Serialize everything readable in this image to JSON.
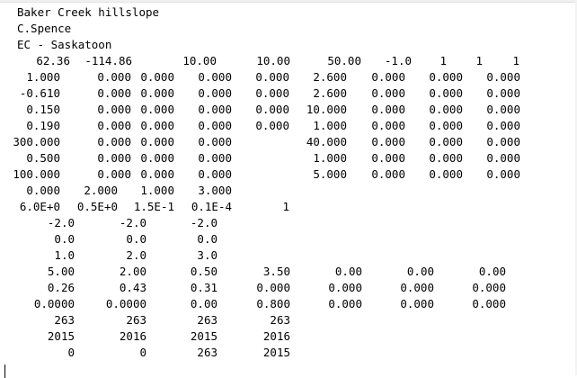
{
  "header_lines": [
    "Baker Creek hillslope",
    "C.Spence",
    "EC - Saskatoon"
  ],
  "rows": [
    [
      "62.36",
      "-114.86",
      "10.00",
      "10.00",
      "50.00",
      "-1.0",
      "1",
      "1",
      "1"
    ],
    [
      "1.000",
      "0.000",
      "0.000",
      "0.000",
      "0.000",
      "2.600",
      "0.000",
      "0.000",
      "0.000"
    ],
    [
      "-0.610",
      "0.000",
      "0.000",
      "0.000",
      "0.000",
      "2.600",
      "0.000",
      "0.000",
      "0.000"
    ],
    [
      "0.150",
      "0.000",
      "0.000",
      "0.000",
      "0.000",
      "10.000",
      "0.000",
      "0.000",
      "0.000"
    ],
    [
      "0.190",
      "0.000",
      "0.000",
      "0.000",
      "0.000",
      "1.000",
      "0.000",
      "0.000",
      "0.000"
    ],
    [
      "300.000",
      "0.000",
      "0.000",
      "0.000",
      "",
      "40.000",
      "0.000",
      "0.000",
      "0.000"
    ],
    [
      "0.500",
      "0.000",
      "0.000",
      "0.000",
      "",
      "1.000",
      "0.000",
      "0.000",
      "0.000"
    ],
    [
      "100.000",
      "0.000",
      "0.000",
      "0.000",
      "",
      "5.000",
      "0.000",
      "0.000",
      "0.000"
    ],
    [
      "0.000",
      "2.000",
      "1.000",
      "3.000"
    ],
    [
      "6.0E+0",
      "0.5E+0",
      "1.5E-1",
      "0.1E-4",
      "1"
    ],
    [
      "-2.0",
      "-2.0",
      "-2.0"
    ],
    [
      "0.0",
      "0.0",
      "0.0"
    ],
    [
      "1.0",
      "2.0",
      "3.0"
    ],
    [
      "5.00",
      "2.00",
      "0.50",
      "3.50",
      "0.00",
      "0.00",
      "0.00"
    ],
    [
      "0.26",
      "0.43",
      "0.31",
      "0.000",
      "0.000",
      "0.000",
      "0.000"
    ],
    [
      "0.0000",
      "0.0000",
      "0.00",
      "0.800",
      "0.000",
      "0.000",
      "0.000"
    ],
    [
      "263",
      "263",
      "263",
      "263"
    ],
    [
      "2015",
      "2016",
      "2015",
      "2016"
    ],
    [
      "0",
      "0",
      "263",
      "2015"
    ]
  ]
}
